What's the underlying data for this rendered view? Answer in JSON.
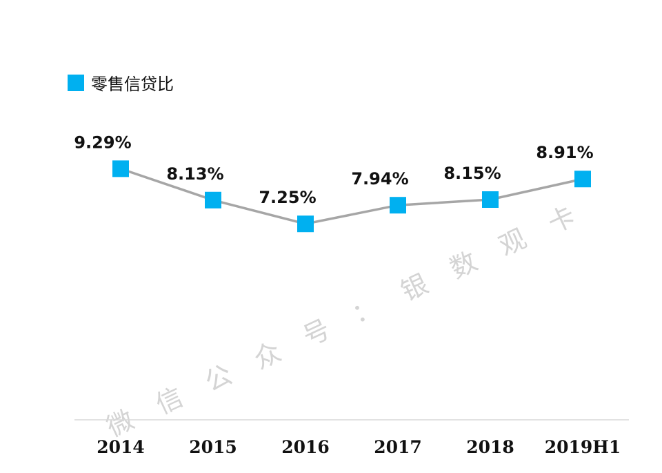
{
  "chart_data": {
    "type": "line",
    "categories": [
      "2014",
      "2015",
      "2016",
      "2017",
      "2018",
      "2019H1"
    ],
    "series": [
      {
        "name": "零售信贷比",
        "values": [
          9.29,
          8.13,
          7.25,
          7.94,
          8.15,
          8.91
        ],
        "labels": [
          "9.29%",
          "8.13%",
          "7.25%",
          "7.94%",
          "8.15%",
          "8.91%"
        ],
        "marker_color": "#00b0f0",
        "line_color": "#a6a6a6"
      }
    ],
    "ylim": [
      0,
      14
    ],
    "grid": false,
    "legend_position": "top-left"
  },
  "watermark": [
    "微",
    "信",
    "公",
    "众",
    "号",
    "：",
    "银",
    "数",
    "观",
    "卡"
  ]
}
